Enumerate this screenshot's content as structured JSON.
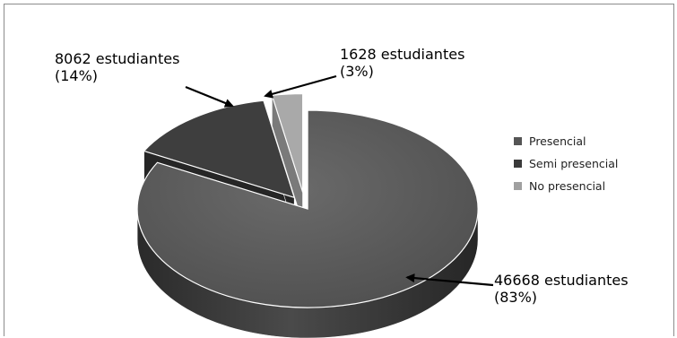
{
  "chart_data": {
    "type": "pie",
    "style": "3d-exploded",
    "categories": [
      "Presencial",
      "Semi presencial",
      "No presencial"
    ],
    "values": [
      46668,
      8062,
      1628
    ],
    "percentages": [
      83,
      14,
      3
    ],
    "colors": [
      "#5a5a5a",
      "#3a3a3a",
      "#a5a5a5"
    ],
    "data_labels": [
      {
        "count": "46668 estudiantes",
        "percent": "(83%)"
      },
      {
        "count": "8062 estudiantes",
        "percent": "(14%)"
      },
      {
        "count": "1628 estudiantes",
        "percent": "(3%)"
      }
    ],
    "legend": {
      "position": "right",
      "items": [
        {
          "label": "Presencial",
          "color": "#555555"
        },
        {
          "label": "Semi presencial",
          "color": "#3a3a3a"
        },
        {
          "label": "No presencial",
          "color": "#a0a0a0"
        }
      ]
    }
  }
}
